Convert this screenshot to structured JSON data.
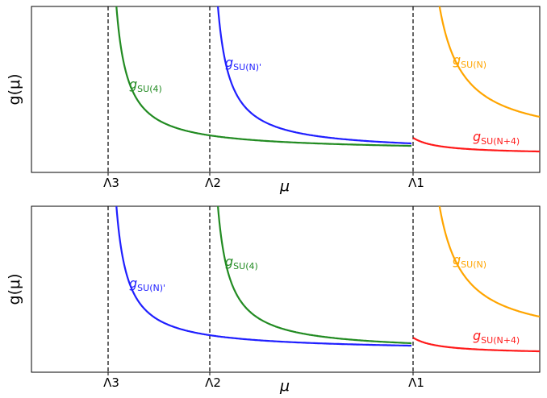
{
  "panels": [
    {
      "y_label": "g(μ)",
      "x_label": "μ",
      "ticks": [
        "Λ3",
        "Λ2",
        "Λ1"
      ],
      "curves": [
        {
          "symbol": "g",
          "subscript": "SU(4)",
          "color": "#228b22"
        },
        {
          "symbol": "g",
          "subscript": "SU(N)'",
          "color": "#1f1fff"
        },
        {
          "symbol": "g",
          "subscript": "SU(N)",
          "color": "#ffa500"
        },
        {
          "symbol": "g",
          "subscript": "SU(N+4)",
          "color": "#ff1a1a"
        }
      ]
    },
    {
      "y_label": "g(μ)",
      "x_label": "μ",
      "ticks": [
        "Λ3",
        "Λ2",
        "Λ1"
      ],
      "curves": [
        {
          "symbol": "g",
          "subscript": "SU(N)'",
          "color": "#1f1fff"
        },
        {
          "symbol": "g",
          "subscript": "SU(4)",
          "color": "#228b22"
        },
        {
          "symbol": "g",
          "subscript": "SU(N)",
          "color": "#ffa500"
        },
        {
          "symbol": "g",
          "subscript": "SU(N+4)",
          "color": "#ff1a1a"
        }
      ]
    }
  ]
}
